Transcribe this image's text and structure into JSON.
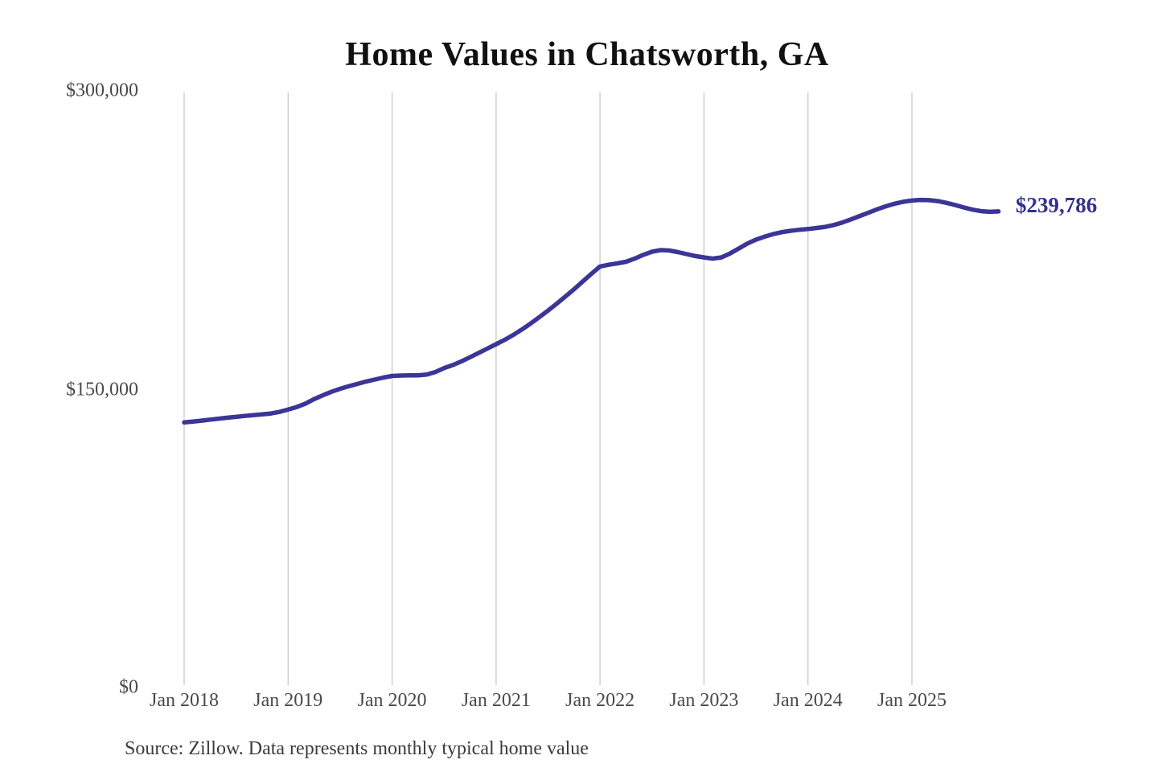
{
  "title": "Home Values in Chatsworth, GA",
  "end_label": "$239,786",
  "source": "Source: Zillow. Data represents monthly typical home value",
  "colors": {
    "line": "#3b3597",
    "end_label": "#333090",
    "grid": "#cccccc",
    "title_text": "#111111",
    "axis_text": "#4a4a4a",
    "source_text": "#3b3b3b"
  },
  "chart_data": {
    "type": "line",
    "title": "Home Values in Chatsworth, GA",
    "xlabel": "",
    "ylabel": "",
    "ylim": [
      0,
      300000
    ],
    "grid": "vertical-only",
    "legend": "none",
    "y_ticks": [
      "$0",
      "$150,000",
      "$300,000"
    ],
    "y_tick_values": [
      0,
      150000,
      300000
    ],
    "x_ticks": [
      "Jan 2018",
      "Jan 2019",
      "Jan 2020",
      "Jan 2021",
      "Jan 2022",
      "Jan 2023",
      "Jan 2024",
      "Jan 2025"
    ],
    "final_value": 239786,
    "final_value_label": "$239,786",
    "series": [
      {
        "name": "Monthly typical home value",
        "months": [
          "2018-01",
          "2018-02",
          "2018-03",
          "2018-04",
          "2018-05",
          "2018-06",
          "2018-07",
          "2018-08",
          "2018-09",
          "2018-10",
          "2018-11",
          "2018-12",
          "2019-01",
          "2019-02",
          "2019-03",
          "2019-04",
          "2019-05",
          "2019-06",
          "2019-07",
          "2019-08",
          "2019-09",
          "2019-10",
          "2019-11",
          "2019-12",
          "2020-01",
          "2020-02",
          "2020-03",
          "2020-04",
          "2020-05",
          "2020-06",
          "2020-07",
          "2020-08",
          "2020-09",
          "2020-10",
          "2020-11",
          "2020-12",
          "2021-01",
          "2021-02",
          "2021-03",
          "2021-04",
          "2021-05",
          "2021-06",
          "2021-07",
          "2021-08",
          "2021-09",
          "2021-10",
          "2021-11",
          "2021-12",
          "2022-01",
          "2022-02",
          "2022-03",
          "2022-04",
          "2022-05",
          "2022-06",
          "2022-07",
          "2022-08",
          "2022-09",
          "2022-10",
          "2022-11",
          "2022-12",
          "2023-01",
          "2023-02",
          "2023-03",
          "2023-04",
          "2023-05",
          "2023-06",
          "2023-07",
          "2023-08",
          "2023-09",
          "2023-10",
          "2023-11",
          "2023-12",
          "2024-01",
          "2024-02",
          "2024-03",
          "2024-04",
          "2024-05",
          "2024-06",
          "2024-07",
          "2024-08",
          "2024-09",
          "2024-10",
          "2024-11",
          "2024-12",
          "2025-01",
          "2025-02",
          "2025-03",
          "2025-04",
          "2025-05",
          "2025-06",
          "2025-07",
          "2025-08",
          "2025-09",
          "2025-10",
          "2025-11"
        ],
        "values": [
          133000,
          133400,
          133900,
          134400,
          134900,
          135400,
          135800,
          136300,
          136700,
          137100,
          137500,
          138300,
          139500,
          140800,
          142500,
          144800,
          146700,
          148500,
          150000,
          151300,
          152500,
          153700,
          154700,
          155700,
          156500,
          156700,
          156800,
          156800,
          157200,
          158500,
          160500,
          162000,
          163900,
          166000,
          168200,
          170400,
          172600,
          174800,
          177300,
          180100,
          183100,
          186300,
          189600,
          193100,
          196700,
          200400,
          204300,
          208200,
          211900,
          212800,
          213500,
          214300,
          215900,
          217800,
          219400,
          220200,
          220000,
          219200,
          218200,
          217200,
          216500,
          215900,
          216500,
          218500,
          221000,
          223500,
          225500,
          227000,
          228300,
          229300,
          230000,
          230500,
          230900,
          231400,
          232000,
          232900,
          234200,
          235800,
          237500,
          239200,
          240900,
          242400,
          243700,
          244700,
          245300,
          245600,
          245500,
          245000,
          244100,
          243000,
          241800,
          240700,
          239900,
          239600,
          239786
        ]
      }
    ]
  }
}
